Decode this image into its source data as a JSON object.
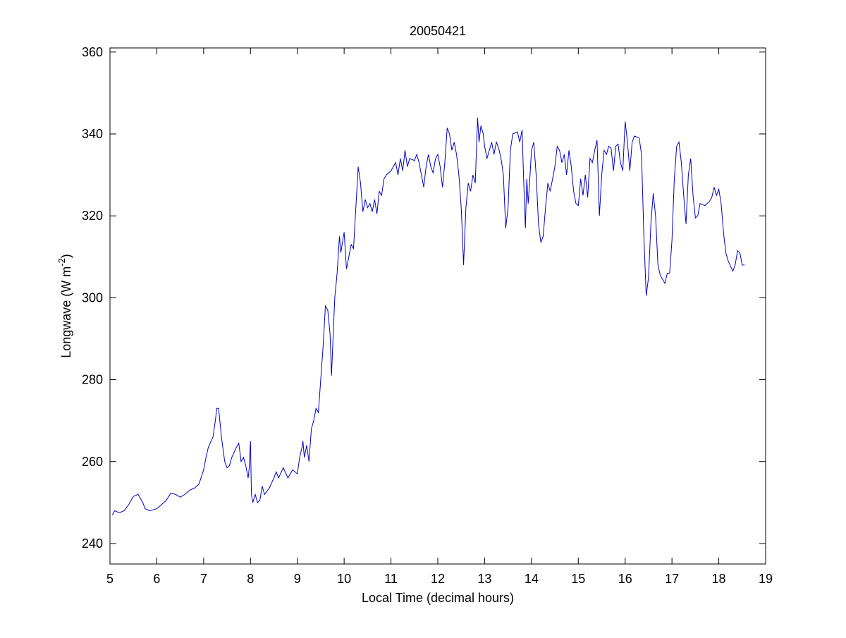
{
  "chart_data": {
    "type": "line",
    "title": "20050421",
    "xlabel": "Local Time (decimal hours)",
    "ylabel": {
      "text": "Longwave (W m",
      "superscript": "-2",
      "suffix": ")"
    },
    "xlim": [
      5,
      19
    ],
    "ylim": [
      235,
      361
    ],
    "xticks": [
      5,
      6,
      7,
      8,
      9,
      10,
      11,
      12,
      13,
      14,
      15,
      16,
      17,
      18,
      19
    ],
    "yticks": [
      240,
      260,
      280,
      300,
      320,
      340,
      360
    ],
    "grid": false,
    "series": [
      {
        "color": "#0000c8",
        "x": [
          5.05,
          5.1,
          5.2,
          5.3,
          5.4,
          5.5,
          5.6,
          5.7,
          5.75,
          5.85,
          6.0,
          6.1,
          6.2,
          6.3,
          6.4,
          6.5,
          6.6,
          6.7,
          6.8,
          6.9,
          7.0,
          7.05,
          7.1,
          7.2,
          7.25,
          7.28,
          7.32,
          7.38,
          7.45,
          7.5,
          7.55,
          7.6,
          7.7,
          7.75,
          7.8,
          7.85,
          7.9,
          7.95,
          7.97,
          8.0,
          8.02,
          8.05,
          8.1,
          8.15,
          8.2,
          8.25,
          8.3,
          8.4,
          8.5,
          8.55,
          8.6,
          8.7,
          8.8,
          8.9,
          9.0,
          9.05,
          9.1,
          9.12,
          9.15,
          9.2,
          9.25,
          9.3,
          9.35,
          9.4,
          9.45,
          9.5,
          9.55,
          9.6,
          9.65,
          9.7,
          9.73,
          9.77,
          9.8,
          9.85,
          9.9,
          9.93,
          9.97,
          10.0,
          10.05,
          10.1,
          10.15,
          10.2,
          10.25,
          10.3,
          10.35,
          10.4,
          10.45,
          10.5,
          10.55,
          10.6,
          10.65,
          10.7,
          10.75,
          10.8,
          10.85,
          10.9,
          11.0,
          11.1,
          11.15,
          11.2,
          11.25,
          11.3,
          11.35,
          11.4,
          11.5,
          11.55,
          11.6,
          11.65,
          11.7,
          11.75,
          11.8,
          11.85,
          11.9,
          11.95,
          12.0,
          12.05,
          12.1,
          12.15,
          12.2,
          12.25,
          12.3,
          12.35,
          12.4,
          12.45,
          12.5,
          12.53,
          12.55,
          12.6,
          12.65,
          12.7,
          12.75,
          12.8,
          12.85,
          12.88,
          12.92,
          12.97,
          13.0,
          13.05,
          13.1,
          13.15,
          13.2,
          13.25,
          13.3,
          13.35,
          13.4,
          13.45,
          13.5,
          13.55,
          13.6,
          13.7,
          13.75,
          13.8,
          13.83,
          13.87,
          13.9,
          13.93,
          13.97,
          14.0,
          14.05,
          14.1,
          14.15,
          14.2,
          14.25,
          14.3,
          14.35,
          14.4,
          14.5,
          14.55,
          14.6,
          14.65,
          14.7,
          14.75,
          14.8,
          14.85,
          14.9,
          14.95,
          15.0,
          15.05,
          15.1,
          15.15,
          15.2,
          15.25,
          15.3,
          15.35,
          15.4,
          15.45,
          15.5,
          15.55,
          15.6,
          15.65,
          15.7,
          15.75,
          15.8,
          15.85,
          15.9,
          15.95,
          16.0,
          16.05,
          16.1,
          16.15,
          16.2,
          16.3,
          16.35,
          16.4,
          16.45,
          16.5,
          16.55,
          16.6,
          16.65,
          16.7,
          16.75,
          16.8,
          16.85,
          16.9,
          16.95,
          17.0,
          17.05,
          17.1,
          17.15,
          17.2,
          17.25,
          17.3,
          17.35,
          17.4,
          17.45,
          17.5,
          17.55,
          17.6,
          17.7,
          17.8,
          17.85,
          17.9,
          17.95,
          18.0,
          18.05,
          18.1,
          18.15,
          18.2,
          18.3,
          18.35,
          18.4,
          18.45,
          18.5,
          18.55
        ],
        "values": [
          247,
          248,
          247.5,
          248,
          249.5,
          251.5,
          252,
          250,
          248.5,
          248,
          248.5,
          249.5,
          250.5,
          252.3,
          252,
          251.3,
          252,
          253,
          253.5,
          254.5,
          258,
          261,
          263.5,
          266,
          270,
          273,
          273,
          266,
          260,
          258.5,
          259,
          261,
          263.5,
          264.5,
          260,
          261,
          259,
          256,
          258,
          265,
          252,
          250,
          252,
          250,
          250.5,
          254,
          252,
          253.5,
          256,
          257.5,
          256,
          258.5,
          256,
          258,
          257,
          261,
          263.5,
          265,
          261,
          264,
          260,
          268,
          270,
          273,
          272,
          280,
          288,
          298,
          297,
          291,
          281,
          292,
          300,
          306,
          315,
          311,
          314,
          316,
          307,
          310,
          313,
          312,
          322,
          332,
          328,
          321,
          324,
          322,
          323,
          321,
          324,
          320.5,
          326,
          325,
          329,
          330,
          331,
          333,
          330,
          334,
          331,
          336,
          332,
          334,
          333.5,
          335,
          333,
          330,
          327,
          332,
          335,
          332,
          330.5,
          334,
          335,
          332,
          327,
          333,
          341.5,
          340,
          336,
          338,
          335,
          330,
          322,
          314,
          308,
          322,
          328,
          326,
          330,
          328,
          344,
          338,
          342,
          340,
          337,
          334,
          336,
          338,
          335,
          338,
          336.5,
          334,
          330,
          317,
          322,
          336,
          340,
          340.5,
          338,
          341,
          330,
          317,
          329,
          323,
          330,
          336,
          338,
          330,
          318,
          313.5,
          315,
          322,
          328,
          326,
          332,
          337,
          336,
          333,
          335,
          330,
          336,
          332,
          326,
          323,
          322.5,
          329,
          325,
          330,
          324.5,
          334,
          333,
          336,
          338.5,
          320,
          330,
          336,
          335,
          337,
          336.5,
          331,
          337,
          337.5,
          333,
          331,
          343,
          338,
          331,
          338,
          339.5,
          339,
          335,
          315,
          300.5,
          305,
          318,
          325.5,
          320,
          308,
          305.5,
          304.5,
          303.5,
          306,
          306,
          314,
          329,
          337,
          338,
          333,
          325,
          318,
          330,
          334,
          325,
          319.5,
          320,
          323,
          322.5,
          323.5,
          324.5,
          327,
          325,
          326.5,
          323,
          316,
          311,
          309,
          306.5,
          308,
          311.5,
          311,
          308,
          308
        ]
      }
    ]
  }
}
